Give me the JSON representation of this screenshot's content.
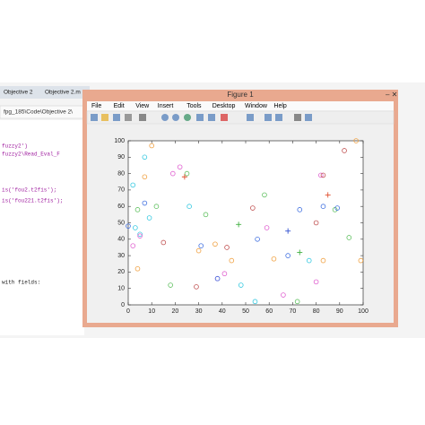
{
  "editor": {
    "tabs": [
      "Objective 2",
      "Objective 2.m"
    ],
    "path": "fpg_185\\Code\\Objective 2\\",
    "code": [
      "fuzzy2')",
      "fuzzy2\\Read_Eval_F",
      "is('fou2.t2fis');",
      "is('fou221.t2fis');",
      "with fields:"
    ]
  },
  "figure": {
    "title": "Figure 1",
    "menu": [
      "File",
      "Edit",
      "View",
      "Insert",
      "Tools",
      "Desktop",
      "Window",
      "Help"
    ]
  },
  "chart_data": {
    "type": "scatter",
    "xlim": [
      0,
      100
    ],
    "ylim": [
      0,
      100
    ],
    "xticks": [
      0,
      10,
      20,
      30,
      40,
      50,
      60,
      70,
      80,
      90,
      100
    ],
    "yticks": [
      0,
      10,
      20,
      30,
      40,
      50,
      60,
      70,
      80,
      90,
      100
    ],
    "series": [
      {
        "color": "#33c8e0",
        "marker": "o",
        "x": [
          3,
          5,
          7,
          26,
          77,
          54,
          2,
          48,
          9
        ],
        "values": [
          47,
          43,
          90,
          60,
          27,
          2,
          73,
          12,
          53
        ]
      },
      {
        "color": "#f0a040",
        "marker": "o",
        "x": [
          7,
          10,
          30,
          37,
          44,
          62,
          99,
          97,
          83,
          4
        ],
        "values": [
          78,
          97,
          33,
          37,
          27,
          28,
          27,
          100,
          27,
          22
        ]
      },
      {
        "color": "#e060d0",
        "marker": "o",
        "x": [
          2,
          5,
          19,
          38,
          59,
          82,
          80,
          66,
          41,
          22
        ],
        "values": [
          36,
          42,
          80,
          16,
          47,
          79,
          14,
          6,
          19,
          84
        ]
      },
      {
        "color": "#60c060",
        "marker": "o",
        "x": [
          18,
          12,
          25,
          94,
          72,
          4,
          58,
          88,
          33
        ],
        "values": [
          12,
          60,
          80,
          41,
          2,
          58,
          67,
          58,
          55
        ]
      },
      {
        "color": "#4070e0",
        "marker": "o",
        "x": [
          0,
          7,
          38,
          55,
          68,
          89,
          83,
          31,
          73
        ],
        "values": [
          48,
          62,
          16,
          40,
          30,
          59,
          60,
          36,
          58
        ]
      },
      {
        "color": "#c05050",
        "marker": "o",
        "x": [
          83,
          42,
          80,
          53,
          29,
          92,
          15
        ],
        "values": [
          79,
          35,
          50,
          59,
          11,
          94,
          38
        ]
      },
      {
        "color": "#3050d0",
        "marker": "+",
        "x": [
          68
        ],
        "values": [
          45
        ]
      },
      {
        "color": "#e05030",
        "marker": "+",
        "x": [
          85,
          24
        ],
        "values": [
          67,
          78
        ]
      },
      {
        "color": "#40b040",
        "marker": "+",
        "x": [
          73,
          47
        ],
        "values": [
          32,
          49
        ]
      }
    ]
  }
}
